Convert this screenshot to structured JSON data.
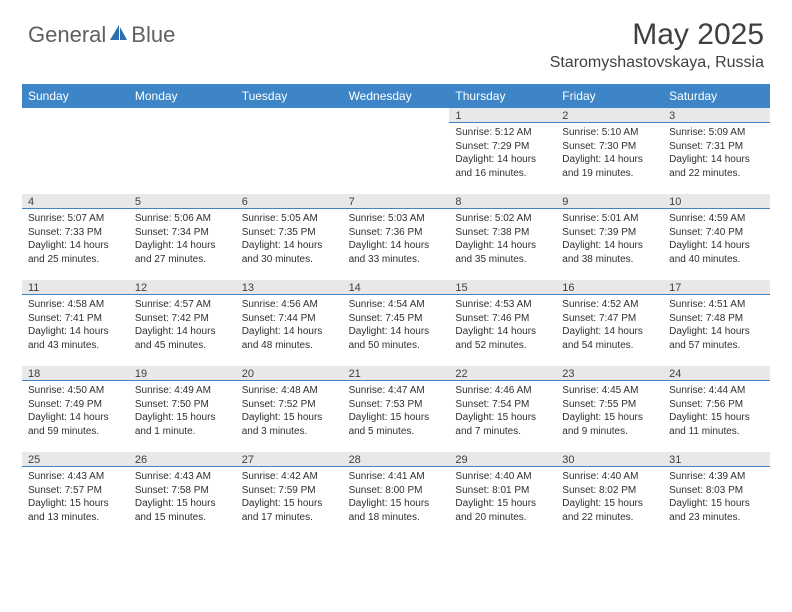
{
  "logo": {
    "part1": "General",
    "part2": "Blue"
  },
  "title": "May 2025",
  "location": "Staromyshastovskaya, Russia",
  "colors": {
    "header_bg": "#3d85c6",
    "header_text": "#ffffff",
    "daynum_bg": "#e8e8e8",
    "border": "#3d85c6",
    "text": "#303030",
    "logo_gray": "#606060",
    "logo_blue": "#2b6fb0"
  },
  "day_names": [
    "Sunday",
    "Monday",
    "Tuesday",
    "Wednesday",
    "Thursday",
    "Friday",
    "Saturday"
  ],
  "weeks": [
    [
      {
        "n": "",
        "sr": "",
        "ss": "",
        "dl": ""
      },
      {
        "n": "",
        "sr": "",
        "ss": "",
        "dl": ""
      },
      {
        "n": "",
        "sr": "",
        "ss": "",
        "dl": ""
      },
      {
        "n": "",
        "sr": "",
        "ss": "",
        "dl": ""
      },
      {
        "n": "1",
        "sr": "Sunrise: 5:12 AM",
        "ss": "Sunset: 7:29 PM",
        "dl": "Daylight: 14 hours and 16 minutes."
      },
      {
        "n": "2",
        "sr": "Sunrise: 5:10 AM",
        "ss": "Sunset: 7:30 PM",
        "dl": "Daylight: 14 hours and 19 minutes."
      },
      {
        "n": "3",
        "sr": "Sunrise: 5:09 AM",
        "ss": "Sunset: 7:31 PM",
        "dl": "Daylight: 14 hours and 22 minutes."
      }
    ],
    [
      {
        "n": "4",
        "sr": "Sunrise: 5:07 AM",
        "ss": "Sunset: 7:33 PM",
        "dl": "Daylight: 14 hours and 25 minutes."
      },
      {
        "n": "5",
        "sr": "Sunrise: 5:06 AM",
        "ss": "Sunset: 7:34 PM",
        "dl": "Daylight: 14 hours and 27 minutes."
      },
      {
        "n": "6",
        "sr": "Sunrise: 5:05 AM",
        "ss": "Sunset: 7:35 PM",
        "dl": "Daylight: 14 hours and 30 minutes."
      },
      {
        "n": "7",
        "sr": "Sunrise: 5:03 AM",
        "ss": "Sunset: 7:36 PM",
        "dl": "Daylight: 14 hours and 33 minutes."
      },
      {
        "n": "8",
        "sr": "Sunrise: 5:02 AM",
        "ss": "Sunset: 7:38 PM",
        "dl": "Daylight: 14 hours and 35 minutes."
      },
      {
        "n": "9",
        "sr": "Sunrise: 5:01 AM",
        "ss": "Sunset: 7:39 PM",
        "dl": "Daylight: 14 hours and 38 minutes."
      },
      {
        "n": "10",
        "sr": "Sunrise: 4:59 AM",
        "ss": "Sunset: 7:40 PM",
        "dl": "Daylight: 14 hours and 40 minutes."
      }
    ],
    [
      {
        "n": "11",
        "sr": "Sunrise: 4:58 AM",
        "ss": "Sunset: 7:41 PM",
        "dl": "Daylight: 14 hours and 43 minutes."
      },
      {
        "n": "12",
        "sr": "Sunrise: 4:57 AM",
        "ss": "Sunset: 7:42 PM",
        "dl": "Daylight: 14 hours and 45 minutes."
      },
      {
        "n": "13",
        "sr": "Sunrise: 4:56 AM",
        "ss": "Sunset: 7:44 PM",
        "dl": "Daylight: 14 hours and 48 minutes."
      },
      {
        "n": "14",
        "sr": "Sunrise: 4:54 AM",
        "ss": "Sunset: 7:45 PM",
        "dl": "Daylight: 14 hours and 50 minutes."
      },
      {
        "n": "15",
        "sr": "Sunrise: 4:53 AM",
        "ss": "Sunset: 7:46 PM",
        "dl": "Daylight: 14 hours and 52 minutes."
      },
      {
        "n": "16",
        "sr": "Sunrise: 4:52 AM",
        "ss": "Sunset: 7:47 PM",
        "dl": "Daylight: 14 hours and 54 minutes."
      },
      {
        "n": "17",
        "sr": "Sunrise: 4:51 AM",
        "ss": "Sunset: 7:48 PM",
        "dl": "Daylight: 14 hours and 57 minutes."
      }
    ],
    [
      {
        "n": "18",
        "sr": "Sunrise: 4:50 AM",
        "ss": "Sunset: 7:49 PM",
        "dl": "Daylight: 14 hours and 59 minutes."
      },
      {
        "n": "19",
        "sr": "Sunrise: 4:49 AM",
        "ss": "Sunset: 7:50 PM",
        "dl": "Daylight: 15 hours and 1 minute."
      },
      {
        "n": "20",
        "sr": "Sunrise: 4:48 AM",
        "ss": "Sunset: 7:52 PM",
        "dl": "Daylight: 15 hours and 3 minutes."
      },
      {
        "n": "21",
        "sr": "Sunrise: 4:47 AM",
        "ss": "Sunset: 7:53 PM",
        "dl": "Daylight: 15 hours and 5 minutes."
      },
      {
        "n": "22",
        "sr": "Sunrise: 4:46 AM",
        "ss": "Sunset: 7:54 PM",
        "dl": "Daylight: 15 hours and 7 minutes."
      },
      {
        "n": "23",
        "sr": "Sunrise: 4:45 AM",
        "ss": "Sunset: 7:55 PM",
        "dl": "Daylight: 15 hours and 9 minutes."
      },
      {
        "n": "24",
        "sr": "Sunrise: 4:44 AM",
        "ss": "Sunset: 7:56 PM",
        "dl": "Daylight: 15 hours and 11 minutes."
      }
    ],
    [
      {
        "n": "25",
        "sr": "Sunrise: 4:43 AM",
        "ss": "Sunset: 7:57 PM",
        "dl": "Daylight: 15 hours and 13 minutes."
      },
      {
        "n": "26",
        "sr": "Sunrise: 4:43 AM",
        "ss": "Sunset: 7:58 PM",
        "dl": "Daylight: 15 hours and 15 minutes."
      },
      {
        "n": "27",
        "sr": "Sunrise: 4:42 AM",
        "ss": "Sunset: 7:59 PM",
        "dl": "Daylight: 15 hours and 17 minutes."
      },
      {
        "n": "28",
        "sr": "Sunrise: 4:41 AM",
        "ss": "Sunset: 8:00 PM",
        "dl": "Daylight: 15 hours and 18 minutes."
      },
      {
        "n": "29",
        "sr": "Sunrise: 4:40 AM",
        "ss": "Sunset: 8:01 PM",
        "dl": "Daylight: 15 hours and 20 minutes."
      },
      {
        "n": "30",
        "sr": "Sunrise: 4:40 AM",
        "ss": "Sunset: 8:02 PM",
        "dl": "Daylight: 15 hours and 22 minutes."
      },
      {
        "n": "31",
        "sr": "Sunrise: 4:39 AM",
        "ss": "Sunset: 8:03 PM",
        "dl": "Daylight: 15 hours and 23 minutes."
      }
    ]
  ]
}
